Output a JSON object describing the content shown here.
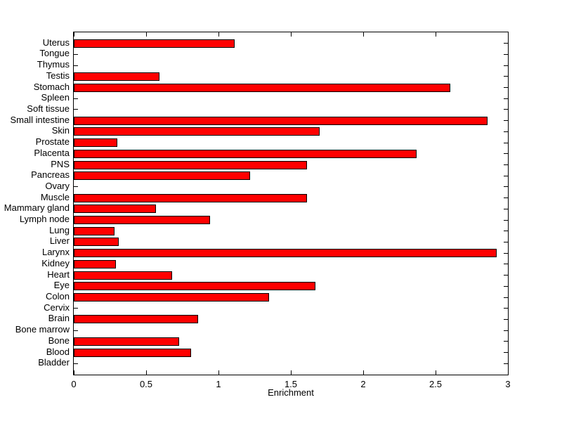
{
  "figure": {
    "background": "#FFFFFF"
  },
  "chart_data": {
    "type": "bar",
    "orientation": "horizontal",
    "title": "",
    "xlabel": "Enrichment",
    "ylabel": "",
    "xlim": [
      0,
      3
    ],
    "xticks": [
      0,
      0.5,
      1,
      1.5,
      2,
      2.5,
      3
    ],
    "xtick_labels": [
      "0",
      "0.5",
      "1",
      "1.5",
      "2",
      "2.5",
      "3"
    ],
    "categories": [
      "Uterus",
      "Tongue",
      "Thymus",
      "Testis",
      "Stomach",
      "Spleen",
      "Soft tissue",
      "Small intestine",
      "Skin",
      "Prostate",
      "Placenta",
      "PNS",
      "Pancreas",
      "Ovary",
      "Muscle",
      "Mammary gland",
      "Lymph node",
      "Lung",
      "Liver",
      "Larynx",
      "Kidney",
      "Heart",
      "Eye",
      "Colon",
      "Cervix",
      "Brain",
      "Bone marrow",
      "Bone",
      "Blood",
      "Bladder"
    ],
    "values": [
      1.11,
      0,
      0,
      0.59,
      2.6,
      0,
      0,
      2.86,
      1.7,
      0.3,
      2.37,
      1.61,
      1.22,
      0,
      1.61,
      0.57,
      0.94,
      0.28,
      0.31,
      2.92,
      0.29,
      0.68,
      1.67,
      1.35,
      0,
      0.86,
      0,
      0.73,
      0.81,
      0
    ],
    "bar_color": "#FF0000",
    "bar_edge_color": "#000000",
    "axis_color": "#000000",
    "grid": false,
    "legend": "none"
  }
}
